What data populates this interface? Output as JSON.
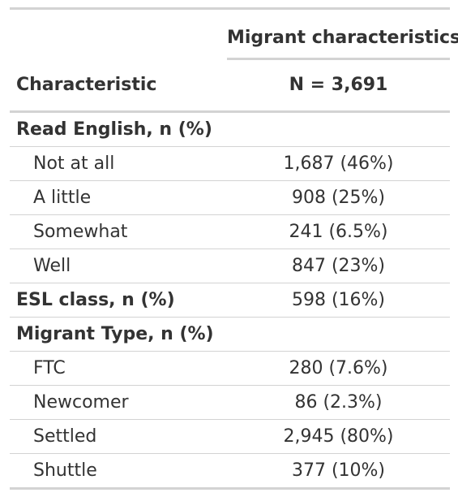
{
  "table": {
    "spanner": "Migrant characteristics",
    "col_label": "Characteristic",
    "col_n": "N = 3,691",
    "rows": [
      {
        "label": "Read English, n (%)",
        "value": ""
      },
      {
        "label": "Not at all",
        "value": "1,687 (46%)"
      },
      {
        "label": "A little",
        "value": "908 (25%)"
      },
      {
        "label": "Somewhat",
        "value": "241 (6.5%)"
      },
      {
        "label": "Well",
        "value": "847 (23%)"
      },
      {
        "label": "ESL class, n (%)",
        "value": "598 (16%)"
      },
      {
        "label": "Migrant Type, n (%)",
        "value": ""
      },
      {
        "label": "FTC",
        "value": "280 (7.6%)"
      },
      {
        "label": "Newcomer",
        "value": "86 (2.3%)"
      },
      {
        "label": "Settled",
        "value": "2,945 (80%)"
      },
      {
        "label": "Shuttle",
        "value": "377 (10%)"
      }
    ]
  }
}
